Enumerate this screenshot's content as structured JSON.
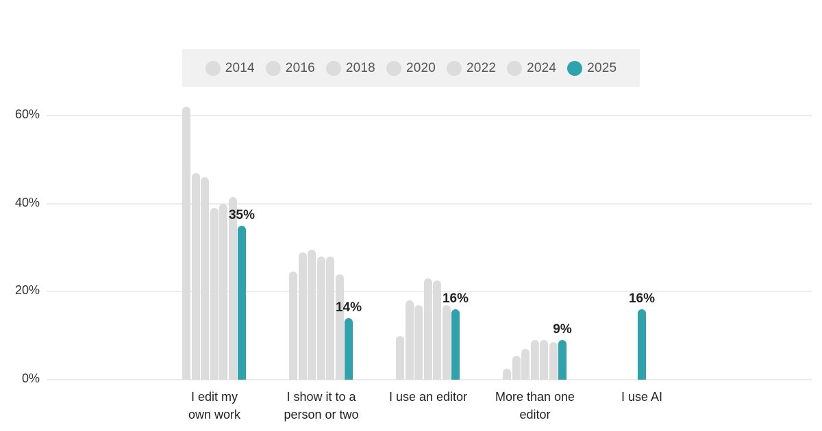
{
  "chart_data": {
    "type": "bar",
    "title": "",
    "xlabel": "",
    "ylabel": "",
    "ylim": [
      0,
      60
    ],
    "yticks": [
      "0%",
      "20%",
      "40%",
      "60%"
    ],
    "grid": true,
    "legend_position": "top",
    "highlight_color": "#2fa3ad",
    "base_color": "#dcdcdc",
    "categories": [
      "I edit my own work",
      "I show it to a person or two",
      "I use an editor",
      "More than one editor",
      "I use AI"
    ],
    "category_lines": [
      [
        "I edit my",
        "own work"
      ],
      [
        "I show it to a",
        "person or two"
      ],
      [
        "I use an editor",
        ""
      ],
      [
        "More than one",
        "editor"
      ],
      [
        "I use AI",
        ""
      ]
    ],
    "series": [
      {
        "name": "2014",
        "values": [
          62,
          24.5,
          10,
          2.5,
          null
        ]
      },
      {
        "name": "2016",
        "values": [
          47,
          29,
          18,
          5.5,
          null
        ]
      },
      {
        "name": "2018",
        "values": [
          46,
          29.5,
          17,
          7,
          null
        ]
      },
      {
        "name": "2020",
        "values": [
          39,
          28,
          23,
          9,
          null
        ]
      },
      {
        "name": "2022",
        "values": [
          40,
          28,
          22.5,
          9,
          null
        ]
      },
      {
        "name": "2024",
        "values": [
          41.5,
          24,
          17,
          8.5,
          null
        ]
      },
      {
        "name": "2025",
        "values": [
          35,
          14,
          16,
          9,
          16
        ]
      }
    ],
    "value_labels_2025": [
      "35%",
      "14%",
      "16%",
      "9%",
      "16%"
    ]
  },
  "legend": {
    "items": [
      {
        "label": "2014",
        "color": "#dcdcdc"
      },
      {
        "label": "2016",
        "color": "#dcdcdc"
      },
      {
        "label": "2018",
        "color": "#dcdcdc"
      },
      {
        "label": "2020",
        "color": "#dcdcdc"
      },
      {
        "label": "2022",
        "color": "#dcdcdc"
      },
      {
        "label": "2024",
        "color": "#dcdcdc"
      },
      {
        "label": "2025",
        "color": "#2fa3ad"
      }
    ]
  },
  "axis": {
    "y_labels": [
      "60%",
      "40%",
      "20%",
      "0%"
    ]
  }
}
